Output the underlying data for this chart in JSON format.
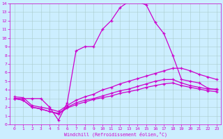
{
  "bg_color": "#cceeff",
  "line_color": "#cc00cc",
  "grid_color": "#aacccc",
  "xlabel": "Windchill (Refroidissement éolien,°C)",
  "xlim": [
    -0.5,
    23.5
  ],
  "ylim": [
    0,
    14
  ],
  "xticks": [
    0,
    1,
    2,
    3,
    4,
    5,
    6,
    7,
    8,
    9,
    10,
    11,
    12,
    13,
    14,
    15,
    16,
    17,
    18,
    19,
    20,
    21,
    22,
    23
  ],
  "yticks": [
    0,
    1,
    2,
    3,
    4,
    5,
    6,
    7,
    8,
    9,
    10,
    11,
    12,
    13,
    14
  ],
  "curve1_x": [
    0,
    1,
    2,
    3,
    4,
    5,
    6,
    7,
    8,
    9,
    10,
    11,
    12,
    13,
    14,
    15,
    16,
    17,
    18,
    19,
    20,
    21,
    22,
    23
  ],
  "curve1_y": [
    3.0,
    3.0,
    3.0,
    3.0,
    2.0,
    0.5,
    2.5,
    8.5,
    9.0,
    9.0,
    11.0,
    12.0,
    13.5,
    14.2,
    14.2,
    13.8,
    11.8,
    10.5,
    8.0,
    5.2,
    5.0,
    4.8,
    4.2,
    4.0
  ],
  "curve2_x": [
    0,
    1,
    2,
    3,
    4,
    5,
    6,
    7,
    8,
    9,
    10,
    11,
    12,
    13,
    14,
    15,
    16,
    17,
    18,
    19,
    20,
    21,
    22,
    23
  ],
  "curve2_y": [
    3.2,
    3.1,
    2.2,
    2.0,
    1.8,
    1.5,
    2.2,
    2.8,
    3.2,
    3.5,
    4.0,
    4.3,
    4.7,
    5.0,
    5.3,
    5.6,
    5.9,
    6.2,
    6.5,
    6.5,
    6.2,
    5.8,
    5.5,
    5.2
  ],
  "curve3_x": [
    0,
    1,
    2,
    3,
    4,
    5,
    6,
    7,
    8,
    9,
    10,
    11,
    12,
    13,
    14,
    15,
    16,
    17,
    18,
    19,
    20,
    21,
    22,
    23
  ],
  "curve3_y": [
    3.0,
    2.8,
    2.0,
    1.8,
    1.5,
    1.3,
    2.0,
    2.5,
    2.8,
    3.0,
    3.3,
    3.6,
    3.9,
    4.1,
    4.4,
    4.7,
    5.0,
    5.2,
    5.2,
    4.8,
    4.5,
    4.3,
    4.1,
    4.1
  ],
  "curve4_x": [
    0,
    1,
    2,
    3,
    4,
    5,
    6,
    7,
    8,
    9,
    10,
    11,
    12,
    13,
    14,
    15,
    16,
    17,
    18,
    19,
    20,
    21,
    22,
    23
  ],
  "curve4_y": [
    3.0,
    2.8,
    2.0,
    1.8,
    1.5,
    1.2,
    1.9,
    2.3,
    2.6,
    2.9,
    3.1,
    3.3,
    3.6,
    3.8,
    4.0,
    4.3,
    4.5,
    4.7,
    4.8,
    4.5,
    4.3,
    4.1,
    3.9,
    3.8
  ]
}
